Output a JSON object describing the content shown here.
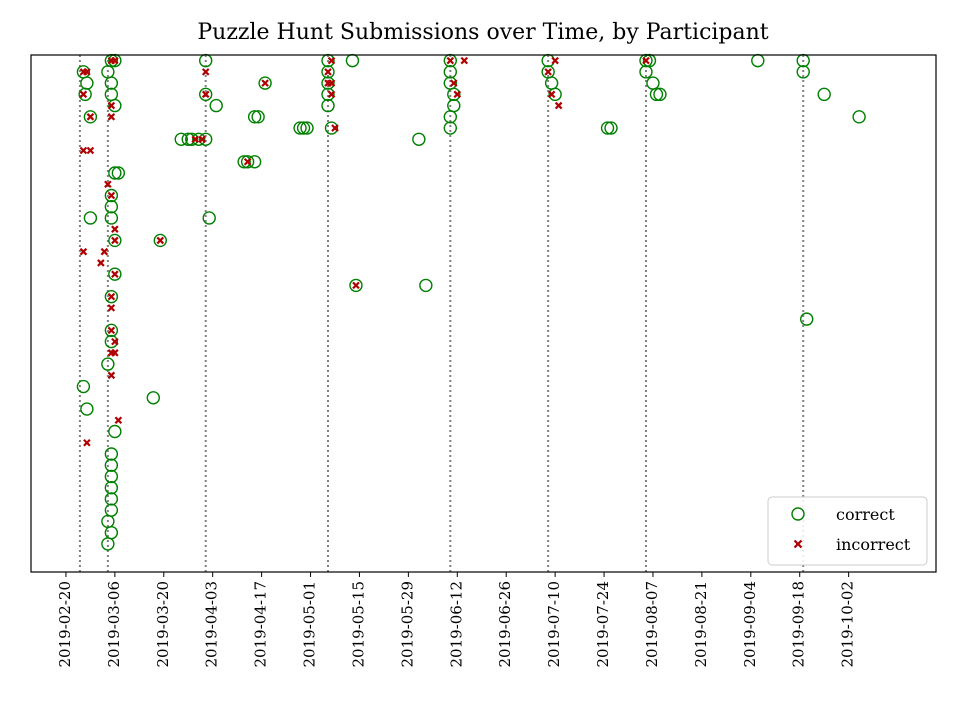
{
  "chart_data": {
    "type": "scatter",
    "title": "Puzzle Hunt Submissions over Time, by Participant",
    "xlabel": "",
    "ylabel": "",
    "x_axis": "date",
    "xlim": [
      "2019-02-10",
      "2019-10-27"
    ],
    "ylim": [
      -0.5,
      45.5
    ],
    "y_tick_labels_shown": false,
    "grid": false,
    "legend": "lower-right",
    "x_ticks": [
      "2019-02-20",
      "2019-03-06",
      "2019-03-20",
      "2019-04-03",
      "2019-04-17",
      "2019-05-01",
      "2019-05-15",
      "2019-05-29",
      "2019-06-12",
      "2019-06-26",
      "2019-07-10",
      "2019-07-24",
      "2019-08-07",
      "2019-08-21",
      "2019-09-04",
      "2019-09-18",
      "2019-10-02"
    ],
    "reference_lines": [
      "2019-02-24",
      "2019-03-04",
      "2019-04-01",
      "2019-05-06",
      "2019-06-10",
      "2019-07-08",
      "2019-08-05",
      "2019-09-19"
    ],
    "reference_line_color": "#808080",
    "series": [
      {
        "name": "correct",
        "marker": "open-circle",
        "color": "#008000",
        "points": [
          [
            "2019-02-25",
            44
          ],
          [
            "2019-02-25.5",
            42
          ],
          [
            "2019-02-26",
            43
          ],
          [
            "2019-02-27",
            40
          ],
          [
            "2019-03-04",
            44
          ],
          [
            "2019-03-05",
            45
          ],
          [
            "2019-03-05",
            43
          ],
          [
            "2019-03-05",
            42
          ],
          [
            "2019-03-06",
            41
          ],
          [
            "2019-03-06",
            45
          ],
          [
            "2019-04-01",
            45
          ],
          [
            "2019-04-01",
            42
          ],
          [
            "2019-04-04",
            41
          ],
          [
            "2019-04-15",
            40
          ],
          [
            "2019-04-16",
            40
          ],
          [
            "2019-04-18",
            43
          ],
          [
            "2019-04-28",
            39
          ],
          [
            "2019-04-29",
            39
          ],
          [
            "2019-04-30",
            39
          ],
          [
            "2019-05-06",
            45
          ],
          [
            "2019-05-06",
            44
          ],
          [
            "2019-05-06",
            43
          ],
          [
            "2019-05-06",
            42
          ],
          [
            "2019-05-06",
            41
          ],
          [
            "2019-05-07",
            39
          ],
          [
            "2019-05-13",
            45
          ],
          [
            "2019-06-10",
            45
          ],
          [
            "2019-06-10",
            44
          ],
          [
            "2019-06-10",
            43
          ],
          [
            "2019-06-11",
            42
          ],
          [
            "2019-06-11",
            41
          ],
          [
            "2019-06-10",
            40
          ],
          [
            "2019-06-10",
            39
          ],
          [
            "2019-06-01",
            38
          ],
          [
            "2019-07-08",
            45
          ],
          [
            "2019-07-08",
            44
          ],
          [
            "2019-07-09",
            43
          ],
          [
            "2019-07-10",
            42
          ],
          [
            "2019-07-25",
            39
          ],
          [
            "2019-07-26",
            39
          ],
          [
            "2019-08-05",
            45
          ],
          [
            "2019-08-06",
            45
          ],
          [
            "2019-08-05",
            44
          ],
          [
            "2019-08-07",
            43
          ],
          [
            "2019-08-09",
            42
          ],
          [
            "2019-08-08",
            42
          ],
          [
            "2019-09-06",
            45
          ],
          [
            "2019-09-19",
            45
          ],
          [
            "2019-09-19",
            44
          ],
          [
            "2019-09-25",
            42
          ],
          [
            "2019-10-05",
            40
          ],
          [
            "2019-03-25",
            38
          ],
          [
            "2019-03-27",
            38
          ],
          [
            "2019-03-28",
            38
          ],
          [
            "2019-03-30",
            38
          ],
          [
            "2019-04-01",
            38
          ],
          [
            "2019-04-12",
            36
          ],
          [
            "2019-04-13",
            36
          ],
          [
            "2019-04-15",
            36
          ],
          [
            "2019-03-06",
            35
          ],
          [
            "2019-03-07",
            35
          ],
          [
            "2019-03-05",
            33
          ],
          [
            "2019-03-05",
            32
          ],
          [
            "2019-03-05",
            31
          ],
          [
            "2019-02-27",
            31
          ],
          [
            "2019-04-02",
            31
          ],
          [
            "2019-03-06",
            29
          ],
          [
            "2019-03-19",
            29
          ],
          [
            "2019-03-06",
            26
          ],
          [
            "2019-05-14",
            25
          ],
          [
            "2019-06-03",
            25
          ],
          [
            "2019-03-05",
            24
          ],
          [
            "2019-03-05",
            21
          ],
          [
            "2019-03-05",
            20
          ],
          [
            "2019-03-04",
            18
          ],
          [
            "2019-09-20",
            22
          ],
          [
            "2019-02-25",
            16
          ],
          [
            "2019-02-26",
            14
          ],
          [
            "2019-03-17",
            15
          ],
          [
            "2019-03-06",
            12
          ],
          [
            "2019-03-05",
            10
          ],
          [
            "2019-03-05",
            9
          ],
          [
            "2019-03-05",
            8
          ],
          [
            "2019-03-05",
            7
          ],
          [
            "2019-03-05",
            6
          ],
          [
            "2019-03-05",
            5
          ],
          [
            "2019-03-04",
            4
          ],
          [
            "2019-03-05",
            3
          ],
          [
            "2019-03-04",
            2
          ]
        ]
      },
      {
        "name": "incorrect",
        "marker": "x",
        "color": "#b00000",
        "points": [
          [
            "2019-02-25",
            44
          ],
          [
            "2019-02-26",
            44
          ],
          [
            "2019-02-25",
            42
          ],
          [
            "2019-02-27",
            40
          ],
          [
            "2019-02-25",
            37
          ],
          [
            "2019-02-27",
            37
          ],
          [
            "2019-02-25",
            28
          ],
          [
            "2019-03-02",
            27
          ],
          [
            "2019-03-03",
            28
          ],
          [
            "2019-03-05",
            45
          ],
          [
            "2019-03-06",
            45
          ],
          [
            "2019-03-05",
            41
          ],
          [
            "2019-03-05",
            40
          ],
          [
            "2019-03-04",
            34
          ],
          [
            "2019-03-05",
            33
          ],
          [
            "2019-03-06",
            30
          ],
          [
            "2019-03-06",
            29
          ],
          [
            "2019-03-06",
            26
          ],
          [
            "2019-03-05",
            24
          ],
          [
            "2019-03-05",
            23
          ],
          [
            "2019-03-05",
            21
          ],
          [
            "2019-03-06",
            20
          ],
          [
            "2019-03-05",
            19
          ],
          [
            "2019-03-06",
            19
          ],
          [
            "2019-03-05",
            17
          ],
          [
            "2019-03-07",
            13
          ],
          [
            "2019-02-26",
            11
          ],
          [
            "2019-03-19",
            29
          ],
          [
            "2019-04-01",
            44
          ],
          [
            "2019-04-01",
            42
          ],
          [
            "2019-03-29",
            38
          ],
          [
            "2019-03-31",
            38
          ],
          [
            "2019-04-13",
            36
          ],
          [
            "2019-04-18",
            43
          ],
          [
            "2019-05-06",
            44
          ],
          [
            "2019-05-06",
            43
          ],
          [
            "2019-05-07",
            43
          ],
          [
            "2019-05-07",
            45
          ],
          [
            "2019-05-07",
            42
          ],
          [
            "2019-05-08",
            39
          ],
          [
            "2019-05-14",
            25
          ],
          [
            "2019-06-10",
            45
          ],
          [
            "2019-06-11",
            43
          ],
          [
            "2019-06-12",
            42
          ],
          [
            "2019-06-14",
            45
          ],
          [
            "2019-07-08",
            44
          ],
          [
            "2019-07-09",
            42
          ],
          [
            "2019-07-10",
            45
          ],
          [
            "2019-07-11",
            41
          ],
          [
            "2019-08-05",
            45
          ]
        ]
      }
    ]
  }
}
